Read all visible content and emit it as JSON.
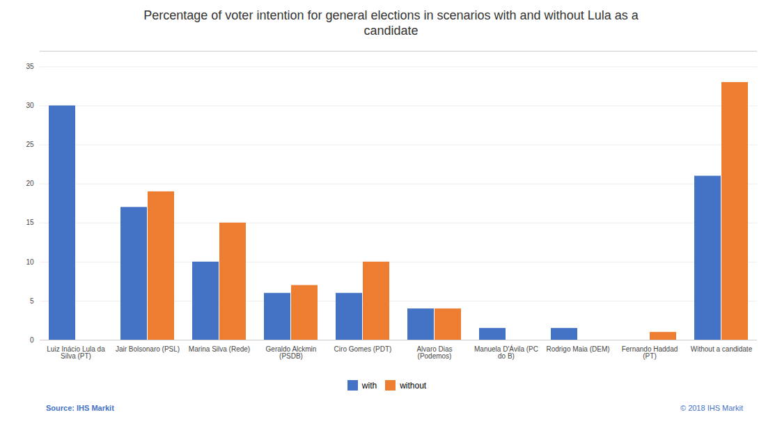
{
  "chart_data": {
    "type": "bar",
    "title": "Percentage of voter intention for general elections in scenarios with and without Lula as a\ncandidate",
    "categories": [
      "Luiz Inácio Lula da\nSilva (PT)",
      "Jair Bolsonaro (PSL)",
      "Marina Silva (Rede)",
      "Geraldo Alckmin\n(PSDB)",
      "Ciro Gomes (PDT)",
      "Alvaro Dias\n(Podemos)",
      "Manuela D'Ávila (PC\ndo B)",
      "Rodrigo Maia (DEM)",
      "Fernando Haddad\n(PT)",
      "Without a candidate"
    ],
    "series": [
      {
        "name": "with",
        "color": "#4472C4",
        "values": [
          30,
          17,
          10,
          6,
          6,
          4,
          1.5,
          1.5,
          0,
          21
        ]
      },
      {
        "name": "without",
        "color": "#ED7D31",
        "values": [
          0,
          19,
          15,
          7,
          10,
          4,
          0,
          0,
          1,
          33
        ]
      }
    ],
    "ylim": [
      0,
      37
    ],
    "yticks": [
      0,
      5,
      10,
      15,
      20,
      25,
      30,
      35
    ],
    "grid": true,
    "legend": "bottom",
    "annotations": [
      {
        "text": "Source: IHS Markit",
        "color": "#4472C4"
      },
      {
        "text": "© 2018 IHS Markit",
        "color": "#4472C4"
      }
    ]
  }
}
